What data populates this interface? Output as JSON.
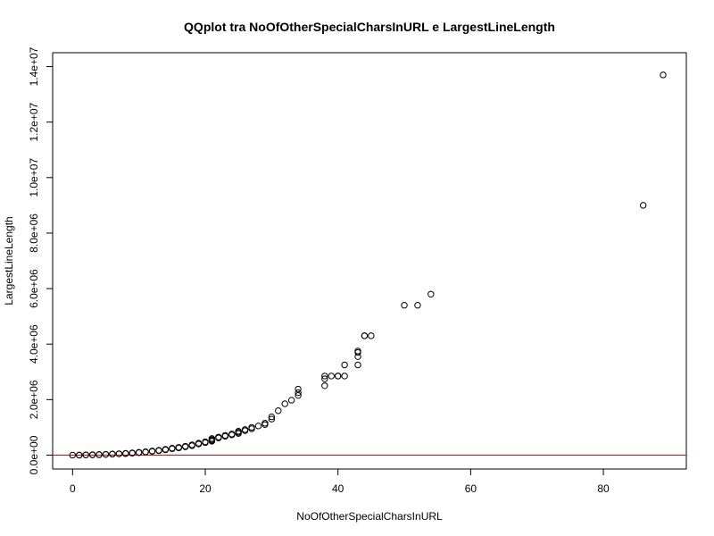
{
  "chart_data": {
    "type": "scatter",
    "title": "QQplot tra NoOfOtherSpecialCharsInURL e LargestLineLength",
    "xlabel": "NoOfOtherSpecialCharsInURL",
    "ylabel": "LargestLineLength",
    "xlim": [
      -3,
      92.5
    ],
    "ylim": [
      -500000,
      14500000
    ],
    "x_ticks": [
      0,
      20,
      40,
      60,
      80
    ],
    "x_tick_labels": [
      "0",
      "20",
      "40",
      "60",
      "80"
    ],
    "y_ticks": [
      0,
      2000000,
      4000000,
      6000000,
      8000000,
      10000000,
      12000000,
      14000000
    ],
    "y_tick_labels": [
      "0.0e+00",
      "2.0e+06",
      "4.0e+06",
      "6.0e+06",
      "8.0e+06",
      "1.0e+07",
      "1.2e+07",
      "1.4e+07"
    ],
    "reference_line": {
      "y": 0,
      "color": "#ff0000"
    },
    "point_color": "#000000",
    "points": [
      [
        0,
        0
      ],
      [
        1,
        0
      ],
      [
        1,
        2000
      ],
      [
        2,
        5000
      ],
      [
        2,
        10000
      ],
      [
        3,
        10000
      ],
      [
        3,
        15000
      ],
      [
        4,
        15000
      ],
      [
        4,
        20000
      ],
      [
        5,
        25000
      ],
      [
        5,
        30000
      ],
      [
        6,
        35000
      ],
      [
        6,
        40000
      ],
      [
        7,
        45000
      ],
      [
        7,
        50000
      ],
      [
        8,
        55000
      ],
      [
        8,
        65000
      ],
      [
        9,
        70000
      ],
      [
        9,
        80000
      ],
      [
        10,
        90000
      ],
      [
        10,
        100000
      ],
      [
        11,
        110000
      ],
      [
        11,
        120000
      ],
      [
        12,
        135000
      ],
      [
        12,
        150000
      ],
      [
        13,
        160000
      ],
      [
        13,
        175000
      ],
      [
        14,
        190000
      ],
      [
        14,
        210000
      ],
      [
        15,
        230000
      ],
      [
        15,
        250000
      ],
      [
        16,
        260000
      ],
      [
        16,
        280000
      ],
      [
        17,
        300000
      ],
      [
        17,
        320000
      ],
      [
        18,
        340000
      ],
      [
        18,
        370000
      ],
      [
        19,
        400000
      ],
      [
        19,
        430000
      ],
      [
        20,
        450000
      ],
      [
        20,
        480000
      ],
      [
        21,
        500000
      ],
      [
        21,
        530000
      ],
      [
        21,
        560000
      ],
      [
        21,
        600000
      ],
      [
        22,
        620000
      ],
      [
        22,
        650000
      ],
      [
        23,
        680000
      ],
      [
        23,
        710000
      ],
      [
        24,
        730000
      ],
      [
        24,
        760000
      ],
      [
        25,
        780000
      ],
      [
        25,
        820000
      ],
      [
        25,
        860000
      ],
      [
        26,
        880000
      ],
      [
        26,
        920000
      ],
      [
        27,
        950000
      ],
      [
        27,
        1000000
      ],
      [
        28,
        1050000
      ],
      [
        29,
        1100000
      ],
      [
        29,
        1150000
      ],
      [
        30,
        1300000
      ],
      [
        30,
        1380000
      ],
      [
        31,
        1600000
      ],
      [
        32,
        1850000
      ],
      [
        33,
        1980000
      ],
      [
        34,
        2150000
      ],
      [
        34,
        2250000
      ],
      [
        34,
        2380000
      ],
      [
        38,
        2500000
      ],
      [
        38,
        2750000
      ],
      [
        38,
        2850000
      ],
      [
        39,
        2850000
      ],
      [
        40,
        2850000
      ],
      [
        40,
        2850000
      ],
      [
        41,
        2850000
      ],
      [
        41,
        3250000
      ],
      [
        43,
        3250000
      ],
      [
        43,
        3550000
      ],
      [
        43,
        3700000
      ],
      [
        43,
        3750000
      ],
      [
        44,
        4300000
      ],
      [
        44,
        4300000
      ],
      [
        45,
        4300000
      ],
      [
        50,
        5400000
      ],
      [
        52,
        5400000
      ],
      [
        54,
        5800000
      ],
      [
        86,
        9000000
      ],
      [
        89,
        13700000
      ]
    ]
  }
}
